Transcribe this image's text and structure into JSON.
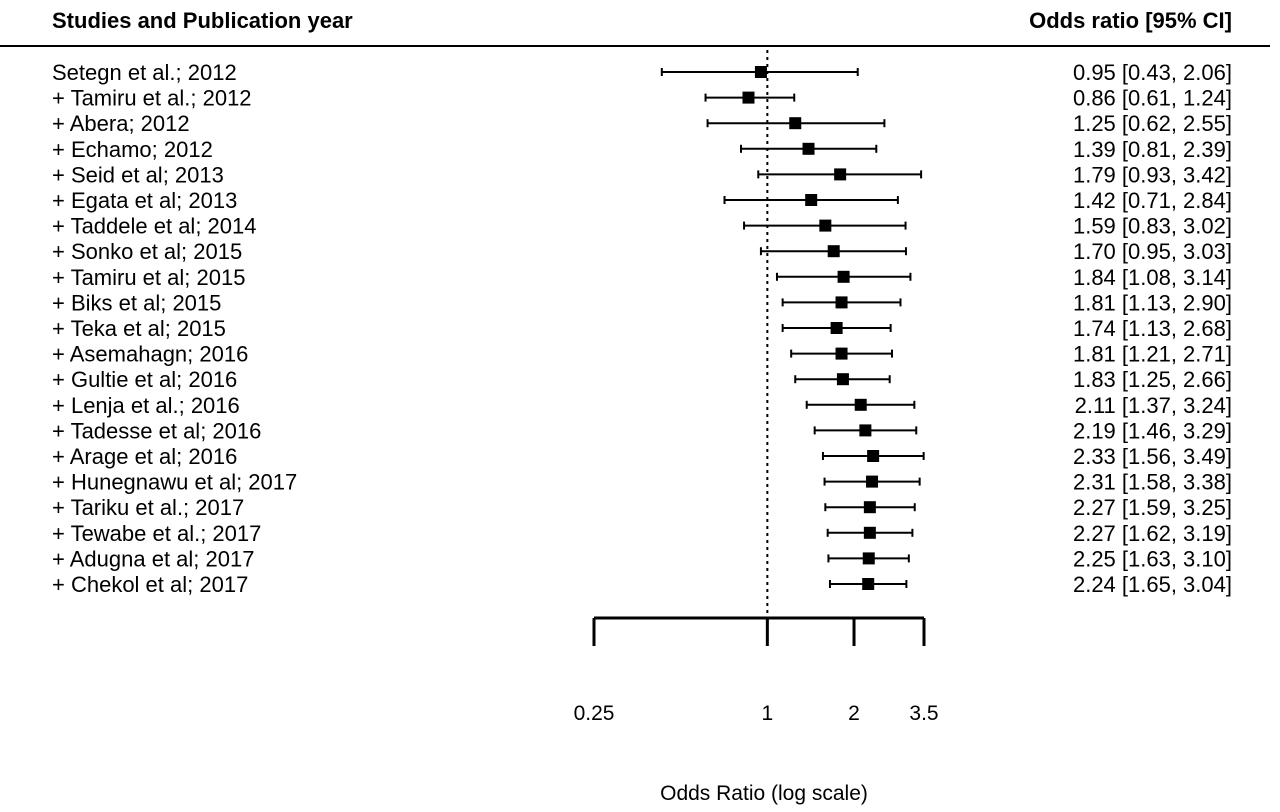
{
  "chart_data": {
    "type": "forest",
    "header_left": "Studies and Publication year",
    "header_right": "Odds ratio [95% CI]",
    "xlabel": "Odds Ratio (log scale)",
    "x_scale": "log",
    "xlim": [
      0.25,
      3.5
    ],
    "x_ticks": [
      "0.25",
      "1",
      "2",
      "3.5"
    ],
    "reference_line": 1,
    "studies": [
      {
        "label": "Setegn et al.; 2012",
        "or": 0.95,
        "lo": 0.43,
        "hi": 2.06,
        "text": "0.95 [0.43, 2.06]"
      },
      {
        "label": "+ Tamiru et al.; 2012",
        "or": 0.86,
        "lo": 0.61,
        "hi": 1.24,
        "text": "0.86 [0.61, 1.24]"
      },
      {
        "label": "+ Abera; 2012",
        "or": 1.25,
        "lo": 0.62,
        "hi": 2.55,
        "text": "1.25 [0.62, 2.55]"
      },
      {
        "label": "+ Echamo; 2012",
        "or": 1.39,
        "lo": 0.81,
        "hi": 2.39,
        "text": "1.39 [0.81, 2.39]"
      },
      {
        "label": "+ Seid et al; 2013",
        "or": 1.79,
        "lo": 0.93,
        "hi": 3.42,
        "text": "1.79 [0.93, 3.42]"
      },
      {
        "label": "+ Egata et al; 2013",
        "or": 1.42,
        "lo": 0.71,
        "hi": 2.84,
        "text": "1.42 [0.71, 2.84]"
      },
      {
        "label": "+ Taddele et al; 2014",
        "or": 1.59,
        "lo": 0.83,
        "hi": 3.02,
        "text": "1.59 [0.83, 3.02]"
      },
      {
        "label": "+ Sonko et al; 2015",
        "or": 1.7,
        "lo": 0.95,
        "hi": 3.03,
        "text": "1.70 [0.95, 3.03]"
      },
      {
        "label": "+ Tamiru et al; 2015",
        "or": 1.84,
        "lo": 1.08,
        "hi": 3.14,
        "text": "1.84 [1.08, 3.14]"
      },
      {
        "label": "+ Biks et al; 2015",
        "or": 1.81,
        "lo": 1.13,
        "hi": 2.9,
        "text": "1.81 [1.13, 2.90]"
      },
      {
        "label": "+ Teka et al; 2015",
        "or": 1.74,
        "lo": 1.13,
        "hi": 2.68,
        "text": "1.74 [1.13, 2.68]"
      },
      {
        "label": "+ Asemahagn; 2016",
        "or": 1.81,
        "lo": 1.21,
        "hi": 2.71,
        "text": "1.81 [1.21, 2.71]"
      },
      {
        "label": "+ Gultie et al; 2016",
        "or": 1.83,
        "lo": 1.25,
        "hi": 2.66,
        "text": "1.83 [1.25, 2.66]"
      },
      {
        "label": "+ Lenja et al.; 2016",
        "or": 2.11,
        "lo": 1.37,
        "hi": 3.24,
        "text": "2.11 [1.37, 3.24]"
      },
      {
        "label": "+ Tadesse et al; 2016",
        "or": 2.19,
        "lo": 1.46,
        "hi": 3.29,
        "text": "2.19 [1.46, 3.29]"
      },
      {
        "label": "+ Arage et al; 2016",
        "or": 2.33,
        "lo": 1.56,
        "hi": 3.49,
        "text": "2.33 [1.56, 3.49]"
      },
      {
        "label": "+ Hunegnawu et al; 2017",
        "or": 2.31,
        "lo": 1.58,
        "hi": 3.38,
        "text": "2.31 [1.58, 3.38]"
      },
      {
        "label": "+ Tariku et al.; 2017",
        "or": 2.27,
        "lo": 1.59,
        "hi": 3.25,
        "text": "2.27 [1.59, 3.25]"
      },
      {
        "label": "+ Tewabe et al.; 2017",
        "or": 2.27,
        "lo": 1.62,
        "hi": 3.19,
        "text": "2.27 [1.62, 3.19]"
      },
      {
        "label": "+ Adugna et al; 2017",
        "or": 2.25,
        "lo": 1.63,
        "hi": 3.1,
        "text": "2.25 [1.63, 3.10]"
      },
      {
        "label": "+ Chekol et al; 2017",
        "or": 2.24,
        "lo": 1.65,
        "hi": 3.04,
        "text": "2.24 [1.65, 3.04]"
      }
    ]
  }
}
